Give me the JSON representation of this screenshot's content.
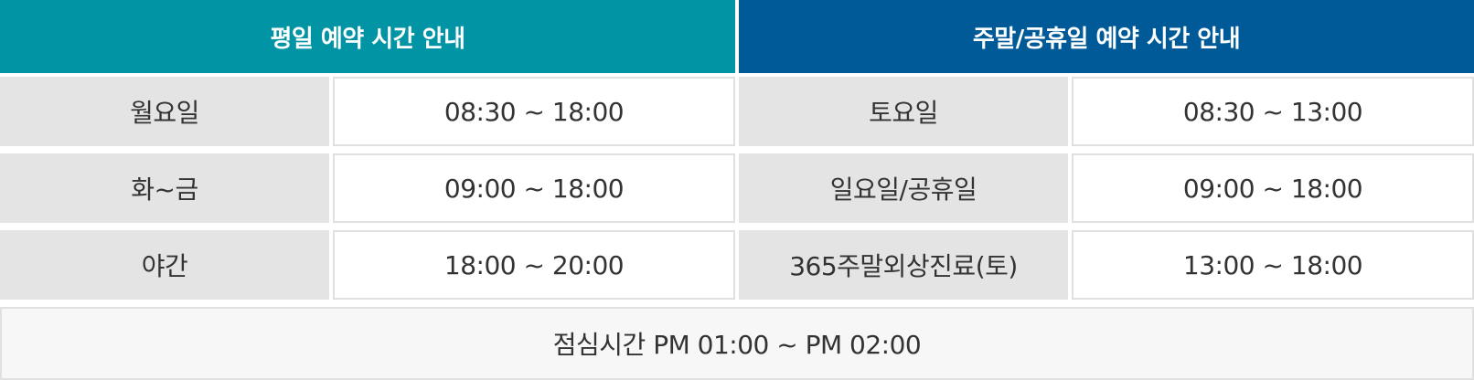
{
  "headers": {
    "weekday": "평일 예약 시간 안내",
    "weekend": "주말/공휴일 예약 시간 안내"
  },
  "weekday": [
    {
      "day": "월요일",
      "hours": "08:30 ~ 18:00"
    },
    {
      "day": "화~금",
      "hours": "09:00 ~ 18:00"
    },
    {
      "day": "야간",
      "hours": "18:00 ~ 20:00"
    }
  ],
  "weekend": [
    {
      "day": "토요일",
      "hours": "08:30 ~ 13:00"
    },
    {
      "day": "일요일/공휴일",
      "hours": "09:00 ~ 18:00"
    },
    {
      "day": "365주말외상진료(토)",
      "hours": "13:00 ~ 18:00"
    }
  ],
  "lunch": "점심시간 PM 01:00 ~ PM 02:00",
  "colors": {
    "weekday_header": "#0094a4",
    "weekend_header": "#005a98",
    "label_bg": "#e4e4e4",
    "lunch_bg": "#f7f7f7",
    "text": "#333333"
  }
}
